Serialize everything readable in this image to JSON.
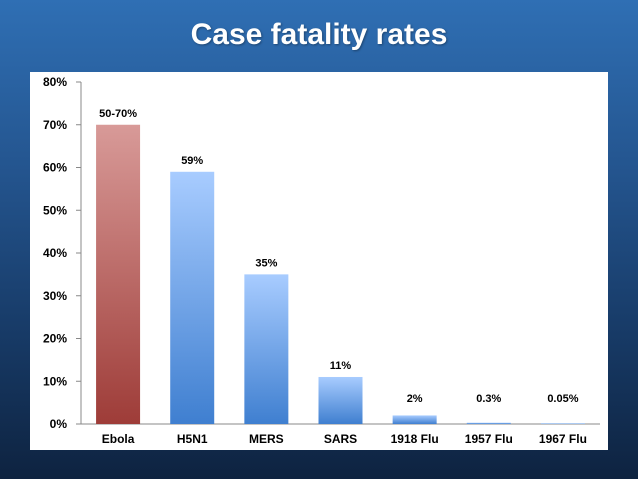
{
  "slide": {
    "title": "Case fatality rates"
  },
  "chart_data": {
    "type": "bar",
    "title": "Case fatality rates",
    "xlabel": "",
    "ylabel": "",
    "ylim": [
      0,
      80
    ],
    "y_ticks": [
      0,
      10,
      20,
      30,
      40,
      50,
      60,
      70,
      80
    ],
    "y_tick_labels": [
      "0%",
      "10%",
      "20%",
      "30%",
      "40%",
      "50%",
      "60%",
      "70%",
      "80%"
    ],
    "grid": false,
    "categories": [
      "Ebola",
      "H5N1",
      "MERS",
      "SARS",
      "1918 Flu",
      "1957 Flu",
      "1967 Flu"
    ],
    "values": [
      70,
      59,
      35,
      11,
      2,
      0.3,
      0.05
    ],
    "data_labels": [
      "50-70%",
      "59%",
      "35%",
      "11%",
      "2%",
      "0.3%",
      "0.05%"
    ],
    "colors": {
      "highlight_top": "#d89a98",
      "highlight_bottom": "#9e3c38",
      "default_top": "#a8ccff",
      "default_bottom": "#3f7fd0"
    }
  }
}
